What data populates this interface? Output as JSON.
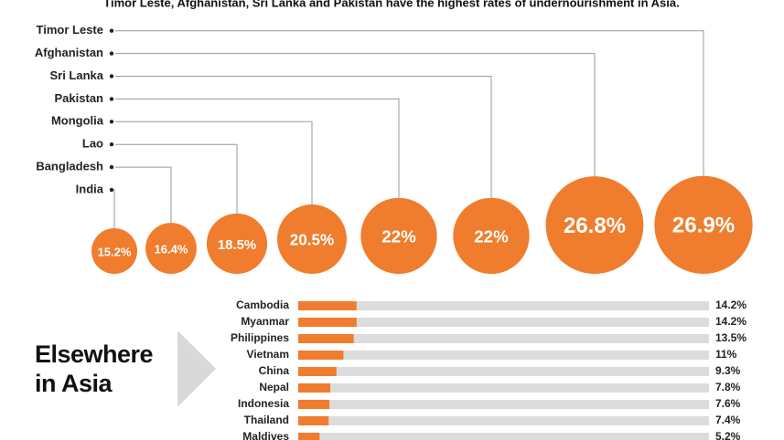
{
  "chart_data": [
    {
      "type": "bubble",
      "title": "Timor Leste, Afghanistan, Sri Lanka and Pakistan have the highest rates of undernourishment in Asia.",
      "categories": [
        "India",
        "Bangladesh",
        "Lao",
        "Mongolia",
        "Pakistan",
        "Sri Lanka",
        "Afghanistan",
        "Timor Leste"
      ],
      "values": [
        15.2,
        16.4,
        18.5,
        20.5,
        22,
        22,
        26.8,
        26.9
      ],
      "value_labels": [
        "15.2%",
        "16.4%",
        "18.5%",
        "20.5%",
        "22%",
        "22%",
        "26.8%",
        "26.9%"
      ],
      "color": "#ef7d2d"
    },
    {
      "type": "hbar",
      "title": "Elsewhere in Asia",
      "categories": [
        "Cambodia",
        "Myanmar",
        "Philippines",
        "Vietnam",
        "China",
        "Nepal",
        "Indonesia",
        "Thailand",
        "Maldives"
      ],
      "values": [
        14.2,
        14.2,
        13.5,
        11,
        9.3,
        7.8,
        7.6,
        7.4,
        5.2
      ],
      "value_labels": [
        "14.2%",
        "14.2%",
        "13.5%",
        "11%",
        "9.3%",
        "7.8%",
        "7.6%",
        "7.4%",
        "5.2%"
      ],
      "xlim": [
        0,
        100
      ],
      "color": "#ef7d2d",
      "track_color": "#dcdcdc"
    }
  ]
}
